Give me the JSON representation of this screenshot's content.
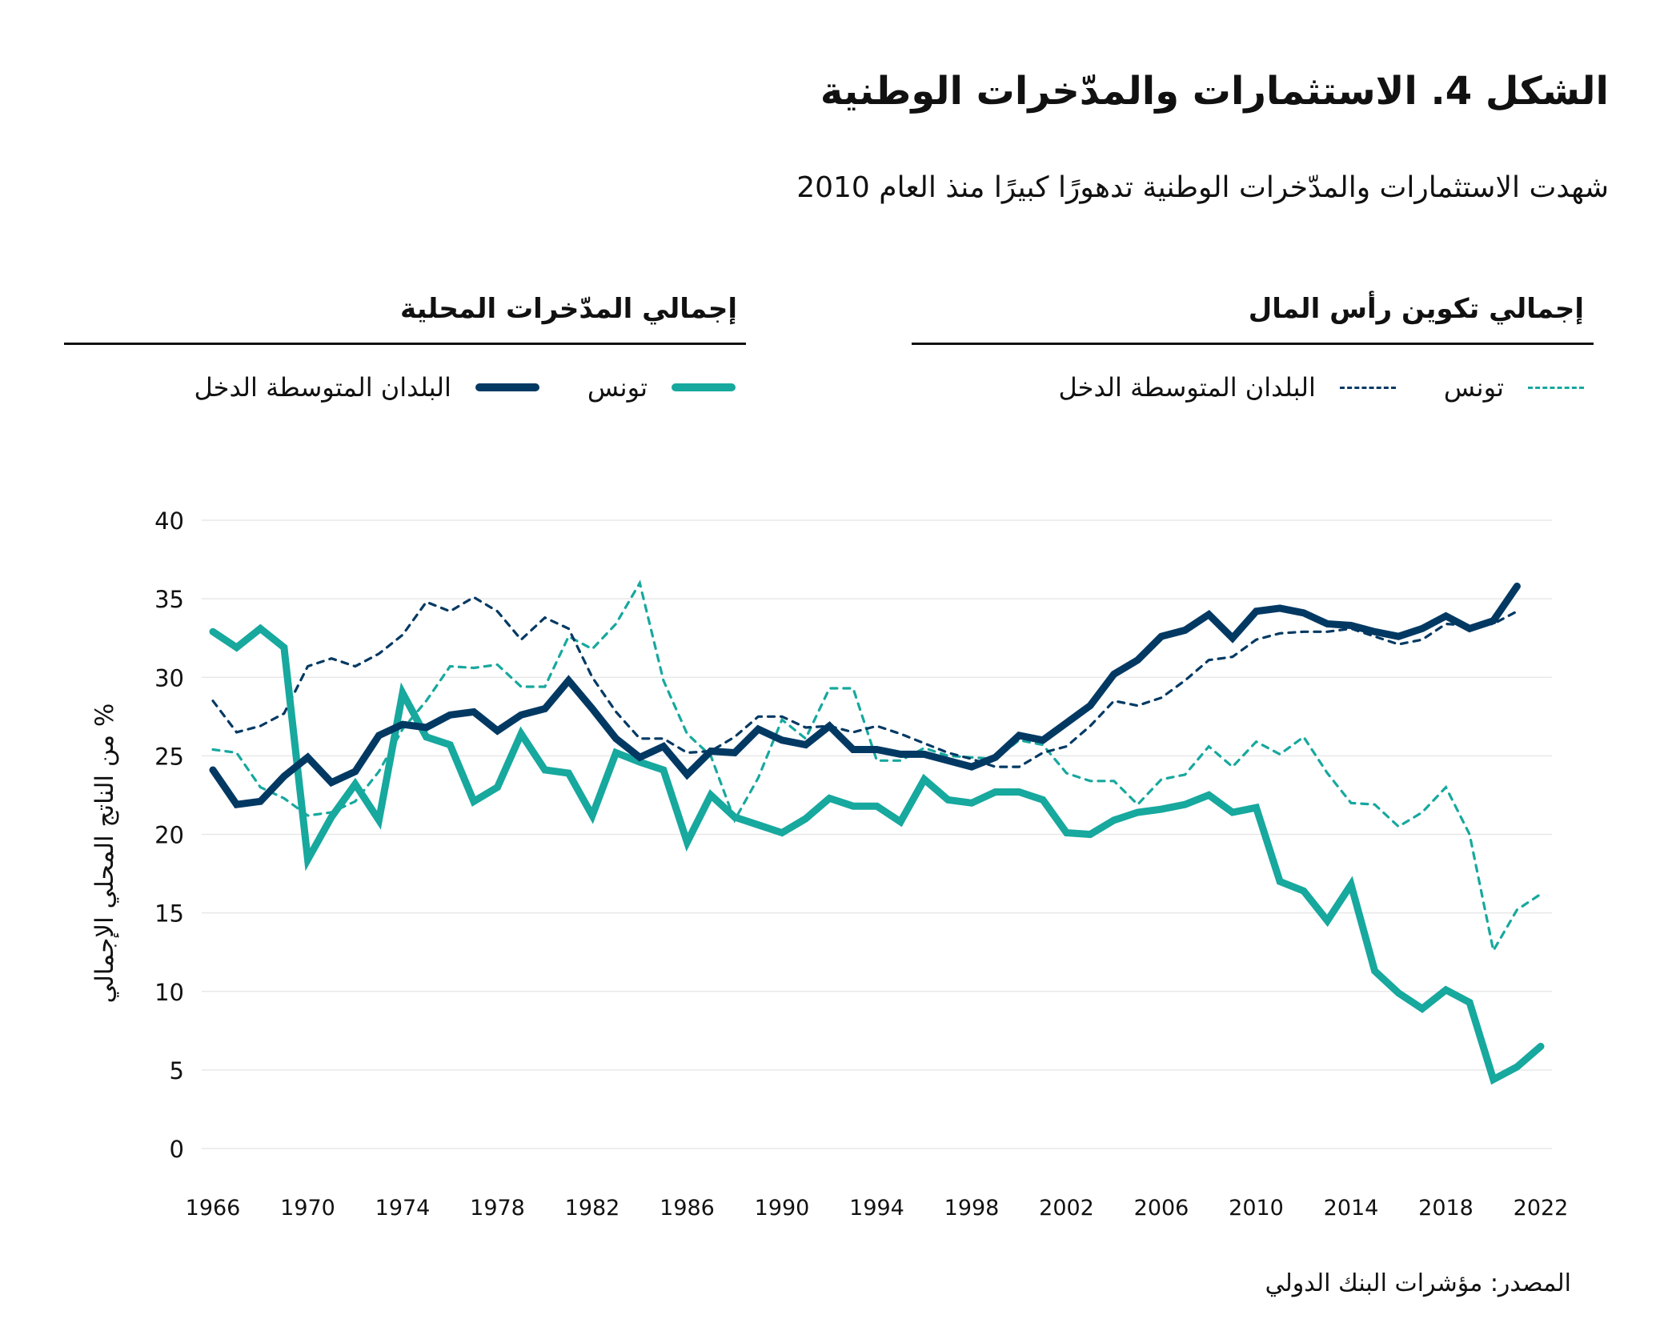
{
  "title": "الشكل 4. الاستثمارات والمدّخرات الوطنية",
  "subtitle": "شهدت الاستثمارات والمدّخرات الوطنية تدهورًا كبيرًا منذ العام 2010",
  "legend": {
    "groups": [
      {
        "header": "إجمالي تكوين رأس المال",
        "style": "dashed",
        "items": [
          {
            "label": "تونس",
            "color": "#17a89e"
          },
          {
            "label": "البلدان المتوسطة الدخل",
            "color": "#023963"
          }
        ]
      },
      {
        "header": "إجمالي المدّخرات المحلية",
        "style": "solid",
        "items": [
          {
            "label": "تونس",
            "color": "#17a89e"
          },
          {
            "label": "البلدان المتوسطة الدخل",
            "color": "#023963"
          }
        ]
      }
    ]
  },
  "source": "المصدر: مؤشرات البنك الدولي",
  "chart_data": {
    "type": "line",
    "ylabel": "% من الناتج المحلي الإجمالي",
    "xlabel": "",
    "xlim": [
      1966,
      2022
    ],
    "ylim": [
      0,
      40
    ],
    "x_ticks": [
      1966,
      1970,
      1974,
      1978,
      1982,
      1986,
      1990,
      1994,
      1998,
      2002,
      2006,
      2010,
      2014,
      2018,
      2022
    ],
    "y_ticks": [
      0,
      5,
      10,
      15,
      20,
      25,
      30,
      35,
      40
    ],
    "grid": "horizontal",
    "legend_position": "top",
    "x_start": 1966,
    "series": [
      {
        "name": "تونس",
        "group": "إجمالي تكوين رأس المال",
        "style": "dashed",
        "color": "#17a89e",
        "values": [
          25.4,
          25.2,
          23.0,
          22.3,
          21.2,
          21.4,
          22.1,
          24.0,
          26.7,
          28.5,
          30.7,
          30.6,
          30.8,
          29.4,
          29.4,
          32.6,
          31.8,
          33.4,
          36.0,
          29.8,
          26.4,
          25.0,
          20.9,
          23.6,
          27.3,
          26.1,
          29.3,
          29.3,
          24.7,
          24.7,
          25.5,
          25.0,
          24.9,
          24.8,
          26.0,
          25.7,
          23.9,
          23.4,
          23.4,
          21.9,
          23.5,
          23.8,
          25.6,
          24.3,
          25.9,
          25.1,
          26.2,
          23.9,
          22.0,
          21.9,
          20.5,
          21.4,
          23.0,
          20.0,
          12.6,
          15.2,
          16.2
        ]
      },
      {
        "name": "البلدان المتوسطة الدخل",
        "group": "إجمالي تكوين رأس المال",
        "style": "dashed",
        "color": "#023963",
        "values": [
          28.5,
          26.5,
          26.9,
          27.7,
          30.7,
          31.2,
          30.7,
          31.5,
          32.7,
          34.8,
          34.2,
          35.1,
          34.2,
          32.4,
          33.8,
          33.1,
          30.0,
          27.8,
          26.1,
          26.1,
          25.2,
          25.3,
          26.2,
          27.5,
          27.5,
          26.8,
          26.9,
          26.5,
          26.9,
          26.4,
          25.8,
          25.2,
          24.8,
          24.3,
          24.3,
          25.2,
          25.6,
          26.9,
          28.5,
          28.2,
          28.7,
          29.8,
          31.1,
          31.3,
          32.4,
          32.8,
          32.9,
          32.9,
          33.1,
          32.6,
          32.1,
          32.4,
          33.4,
          33.3,
          33.4,
          34.2
        ]
      },
      {
        "name": "تونس",
        "group": "إجمالي المدّخرات المحلية",
        "style": "solid",
        "color": "#17a89e",
        "values": [
          32.9,
          31.9,
          33.1,
          31.9,
          18.4,
          21.1,
          23.2,
          20.9,
          29.0,
          26.2,
          25.7,
          22.1,
          23.0,
          26.4,
          24.1,
          23.9,
          21.2,
          25.2,
          24.6,
          24.1,
          19.5,
          22.5,
          21.1,
          20.6,
          20.1,
          21.0,
          22.3,
          21.8,
          21.8,
          20.8,
          23.5,
          22.2,
          22.0,
          22.7,
          22.7,
          22.2,
          20.1,
          20.0,
          20.9,
          21.4,
          21.6,
          21.9,
          22.5,
          21.4,
          21.7,
          17.0,
          16.4,
          14.5,
          16.8,
          11.3,
          9.9,
          8.9,
          10.1,
          9.3,
          4.4,
          5.2,
          6.5
        ]
      },
      {
        "name": "البلدان المتوسطة الدخل",
        "group": "إجمالي المدّخرات المحلية",
        "style": "solid",
        "color": "#023963",
        "values": [
          24.1,
          21.9,
          22.1,
          23.7,
          24.9,
          23.3,
          24.0,
          26.3,
          27.0,
          26.8,
          27.6,
          27.8,
          26.6,
          27.6,
          28.0,
          29.8,
          28.0,
          26.1,
          24.9,
          25.6,
          23.8,
          25.3,
          25.2,
          26.7,
          26.0,
          25.7,
          26.9,
          25.4,
          25.4,
          25.1,
          25.1,
          24.7,
          24.3,
          24.9,
          26.3,
          26.0,
          27.1,
          28.2,
          30.2,
          31.1,
          32.6,
          33.0,
          34.0,
          32.5,
          34.2,
          34.4,
          34.1,
          33.4,
          33.3,
          32.9,
          32.6,
          33.1,
          33.9,
          33.1,
          33.6,
          35.8
        ]
      }
    ]
  }
}
